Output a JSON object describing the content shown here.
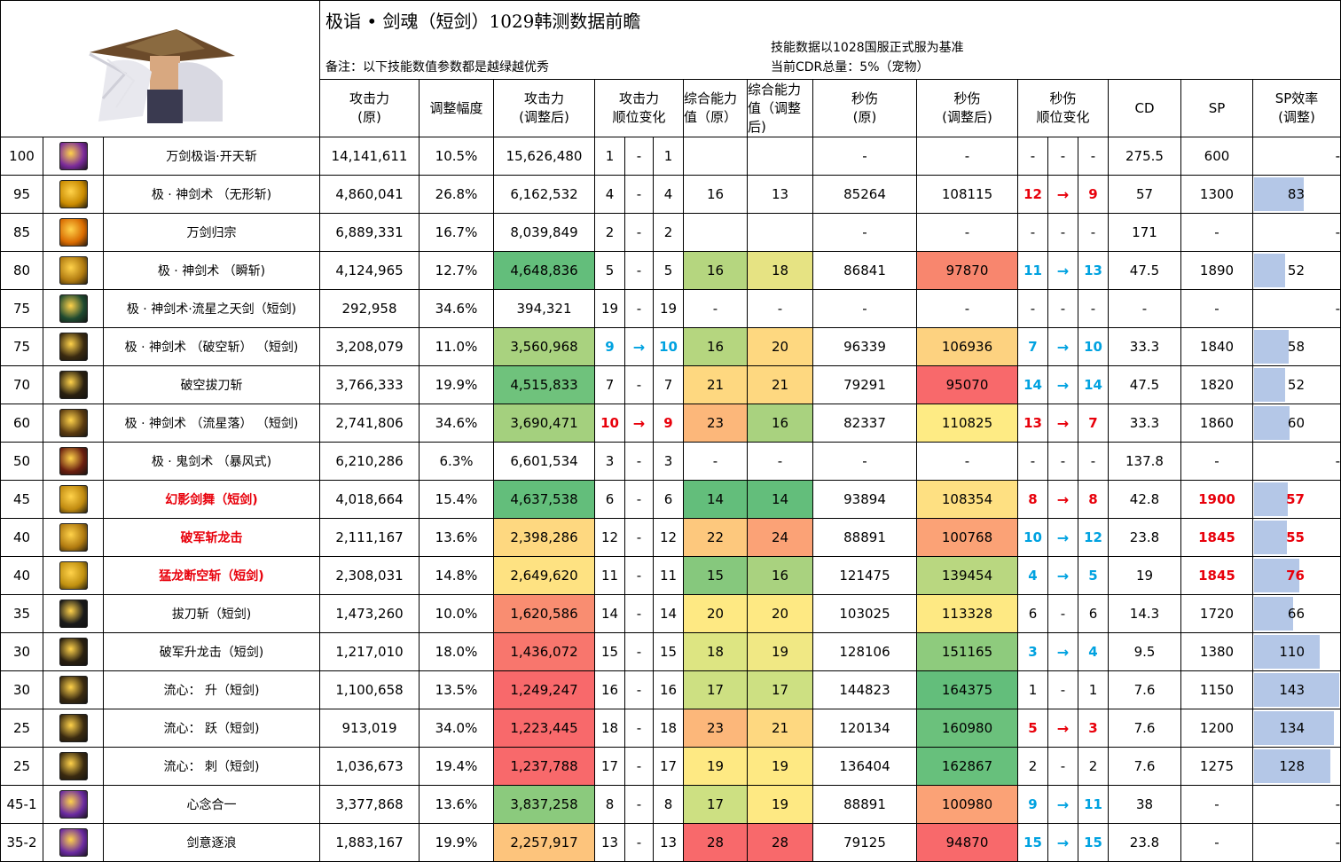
{
  "header": {
    "title": "极诣 • 剑魂（短剑）1029韩测数据前瞻",
    "note": "备注：以下技能数值参数都是越绿越优秀",
    "basis": "技能数据以1028国服正式服为基准",
    "cdr": "当前CDR总量：5%（宠物）"
  },
  "columns": {
    "atk_orig": "攻击力\n(原)",
    "adjust": "调整幅度",
    "atk_new": "攻击力\n(调整后)",
    "atk_rank": "攻击力\n顺位变化",
    "power_orig": "综合能力\n值（原）",
    "power_new": "综合能力\n值（调整\n后)",
    "dps_orig": "秒伤\n(原)",
    "dps_new": "秒伤\n(调整后)",
    "dps_rank": "秒伤\n顺位变化",
    "cd": "CD",
    "sp": "SP",
    "sp_eff": "SP效率\n(调整)"
  },
  "colors": {
    "arrow_red": "#e8000b",
    "arrow_blue": "#00a2e0",
    "spbar": "#b4c7e7"
  },
  "rows": [
    {
      "lv": "100",
      "icon": "spark-icon",
      "iconbg": "#7a2a9a",
      "name": "万剑极诣·开天斩",
      "hl": false,
      "atk": "14,141,611",
      "adj": "10.5%",
      "atk2": "15,626,480",
      "ar1": "1",
      "arr": "-",
      "ar2": "1",
      "ac": "",
      "p1": "",
      "p2": "",
      "d1": "-",
      "d2": "-",
      "dr1": "-",
      "drr": "-",
      "dr2": "-",
      "dc": "",
      "cd": "275.5",
      "sp": "600",
      "spe": "-",
      "spev": null,
      "sphl": false,
      "c_atk2": "#ffffff",
      "c_p1": "#ffffff",
      "c_p2": "#ffffff",
      "c_d2": "#ffffff"
    },
    {
      "lv": "95",
      "icon": "slash-icon",
      "iconbg": "#c98a00",
      "name": "极 · 神剑术 （无形斩)",
      "hl": false,
      "atk": "4,860,041",
      "adj": "26.8%",
      "atk2": "6,162,532",
      "ar1": "4",
      "arr": "-",
      "ar2": "4",
      "ac": "",
      "p1": "16",
      "p2": "13",
      "d1": "85264",
      "d2": "108115",
      "dr1": "12",
      "drr": "→",
      "dr2": "9",
      "dc": "red",
      "cd": "57",
      "sp": "1300",
      "spe": "83",
      "spev": 83,
      "sphl": false,
      "c_atk2": "#ffffff",
      "c_p1": "#ffffff",
      "c_p2": "#ffffff",
      "c_d2": "#ffffff"
    },
    {
      "lv": "85",
      "icon": "burst-icon",
      "iconbg": "#d86a00",
      "name": "万剑归宗",
      "hl": false,
      "atk": "6,889,331",
      "adj": "16.7%",
      "atk2": "8,039,849",
      "ar1": "2",
      "arr": "-",
      "ar2": "2",
      "ac": "",
      "p1": "",
      "p2": "",
      "d1": "-",
      "d2": "-",
      "dr1": "-",
      "drr": "-",
      "dr2": "-",
      "dc": "",
      "cd": "171",
      "sp": "-",
      "spe": "-",
      "spev": null,
      "sphl": false,
      "c_atk2": "#ffffff",
      "c_p1": "#ffffff",
      "c_p2": "#ffffff",
      "c_d2": "#ffffff"
    },
    {
      "lv": "80",
      "icon": "blade-icon",
      "iconbg": "#b07a10",
      "name": "极 · 神剑术 （瞬斩)",
      "hl": false,
      "atk": "4,124,965",
      "adj": "12.7%",
      "atk2": "4,648,836",
      "ar1": "5",
      "arr": "-",
      "ar2": "5",
      "ac": "",
      "p1": "16",
      "p2": "18",
      "d1": "86841",
      "d2": "97870",
      "dr1": "11",
      "drr": "→",
      "dr2": "13",
      "dc": "blue",
      "cd": "47.5",
      "sp": "1890",
      "spe": "52",
      "spev": 52,
      "sphl": false,
      "c_atk2": "#63be7b",
      "c_p1": "#b5d67f",
      "c_p2": "#e6e383",
      "c_d2": "#f8866e"
    },
    {
      "lv": "75",
      "icon": "glyph-icon",
      "iconbg": "#1f4a30",
      "name": "极 · 神剑术·流星之天剑（短剑)",
      "hl": false,
      "atk": "292,958",
      "adj": "34.6%",
      "atk2": "394,321",
      "ar1": "19",
      "arr": "-",
      "ar2": "19",
      "ac": "",
      "p1": "-",
      "p2": "-",
      "d1": "-",
      "d2": "-",
      "dr1": "-",
      "drr": "-",
      "dr2": "-",
      "dc": "",
      "cd": "-",
      "sp": "-",
      "spe": "-",
      "spev": null,
      "sphl": false,
      "c_atk2": "#ffffff",
      "c_p1": "#ffffff",
      "c_p2": "#ffffff",
      "c_d2": "#ffffff"
    },
    {
      "lv": "75",
      "icon": "arc-icon",
      "iconbg": "#3a2a10",
      "name": "极 · 神剑术 （破空斩） （短剑)",
      "hl": false,
      "atk": "3,208,079",
      "adj": "11.0%",
      "atk2": "3,560,968",
      "ar1": "9",
      "arr": "→",
      "ar2": "10",
      "ac": "blue",
      "p1": "16",
      "p2": "20",
      "d1": "96339",
      "d2": "106936",
      "dr1": "7",
      "drr": "→",
      "dr2": "10",
      "dc": "blue",
      "cd": "33.3",
      "sp": "1840",
      "spe": "58",
      "spev": 58,
      "sphl": false,
      "c_atk2": "#a9d27f",
      "c_p1": "#b5d67f",
      "c_p2": "#fed880",
      "c_d2": "#fdd280"
    },
    {
      "lv": "70",
      "icon": "draw-icon",
      "iconbg": "#2a2010",
      "name": "破空拔刀斩",
      "hl": false,
      "atk": "3,766,333",
      "adj": "19.9%",
      "atk2": "4,515,833",
      "ar1": "7",
      "arr": "-",
      "ar2": "7",
      "ac": "",
      "p1": "21",
      "p2": "21",
      "d1": "79291",
      "d2": "95070",
      "dr1": "14",
      "drr": "→",
      "dr2": "14",
      "dc": "blue",
      "cd": "47.5",
      "sp": "1820",
      "spe": "52",
      "spev": 52,
      "sphl": false,
      "c_atk2": "#6fc27c",
      "c_p1": "#fed880",
      "c_p2": "#fed880",
      "c_d2": "#f8696b"
    },
    {
      "lv": "60",
      "icon": "meteor-icon",
      "iconbg": "#5a3a10",
      "name": "极 · 神剑术 （流星落） （短剑)",
      "hl": false,
      "atk": "2,741,806",
      "adj": "34.6%",
      "atk2": "3,690,471",
      "ar1": "10",
      "arr": "→",
      "ar2": "9",
      "ac": "red",
      "p1": "23",
      "p2": "16",
      "d1": "82337",
      "d2": "110825",
      "dr1": "13",
      "drr": "→",
      "dr2": "7",
      "dc": "red",
      "cd": "33.3",
      "sp": "1860",
      "spe": "60",
      "spev": 60,
      "sphl": false,
      "c_atk2": "#a4d07e",
      "c_p1": "#fcb77a",
      "c_p2": "#a9d27f",
      "c_d2": "#feeb84"
    },
    {
      "lv": "50",
      "icon": "storm-icon",
      "iconbg": "#6a1f10",
      "name": "极 · 鬼剑术 （暴风式)",
      "hl": false,
      "atk": "6,210,286",
      "adj": "6.3%",
      "atk2": "6,601,534",
      "ar1": "3",
      "arr": "-",
      "ar2": "3",
      "ac": "",
      "p1": "-",
      "p2": "-",
      "d1": "-",
      "d2": "-",
      "dr1": "-",
      "drr": "-",
      "dr2": "-",
      "dc": "",
      "cd": "137.8",
      "sp": "-",
      "spe": "-",
      "spev": null,
      "sphl": false,
      "c_atk2": "#ffffff",
      "c_p1": "#ffffff",
      "c_p2": "#ffffff",
      "c_d2": "#ffffff"
    },
    {
      "lv": "45",
      "icon": "phantom-icon",
      "iconbg": "#c08a10",
      "name": "幻影剑舞（短剑)",
      "hl": true,
      "atk": "4,018,664",
      "adj": "15.4%",
      "atk2": "4,637,538",
      "ar1": "6",
      "arr": "-",
      "ar2": "6",
      "ac": "",
      "p1": "14",
      "p2": "14",
      "d1": "93894",
      "d2": "108354",
      "dr1": "8",
      "drr": "→",
      "dr2": "8",
      "dc": "red",
      "cd": "42.8",
      "sp": "1900",
      "spe": "57",
      "spev": 57,
      "sphl": true,
      "c_atk2": "#63be7b",
      "c_p1": "#63be7b",
      "c_p2": "#63be7b",
      "c_d2": "#fee082"
    },
    {
      "lv": "40",
      "icon": "dragon-icon",
      "iconbg": "#b07a10",
      "name": "破军斩龙击",
      "hl": true,
      "atk": "2,111,167",
      "adj": "13.6%",
      "atk2": "2,398,286",
      "ar1": "12",
      "arr": "-",
      "ar2": "12",
      "ac": "",
      "p1": "22",
      "p2": "24",
      "d1": "88891",
      "d2": "100768",
      "dr1": "10",
      "drr": "→",
      "dr2": "12",
      "dc": "blue",
      "cd": "23.8",
      "sp": "1845",
      "spe": "55",
      "spev": 55,
      "sphl": true,
      "c_atk2": "#fed880",
      "c_p1": "#fdc87d",
      "c_p2": "#fba276",
      "c_d2": "#fba276"
    },
    {
      "lv": "40",
      "icon": "roar-icon",
      "iconbg": "#c09010",
      "name": "猛龙断空斩（短剑)",
      "hl": true,
      "atk": "2,308,031",
      "adj": "14.8%",
      "atk2": "2,649,620",
      "ar1": "11",
      "arr": "-",
      "ar2": "11",
      "ac": "",
      "p1": "15",
      "p2": "16",
      "d1": "121475",
      "d2": "139454",
      "dr1": "4",
      "drr": "→",
      "dr2": "5",
      "dc": "blue",
      "cd": "19",
      "sp": "1845",
      "spe": "76",
      "spev": 76,
      "sphl": true,
      "c_atk2": "#fee282",
      "c_p1": "#86c87d",
      "c_p2": "#a9d27f",
      "c_d2": "#b9d780"
    },
    {
      "lv": "35",
      "icon": "quickdraw-icon",
      "iconbg": "#1a1a1a",
      "name": "拔刀斩（短剑)",
      "hl": false,
      "atk": "1,473,260",
      "adj": "10.0%",
      "atk2": "1,620,586",
      "ar1": "14",
      "arr": "-",
      "ar2": "14",
      "ac": "",
      "p1": "20",
      "p2": "20",
      "d1": "103025",
      "d2": "113328",
      "dr1": "6",
      "drr": "-",
      "dr2": "6",
      "dc": "",
      "cd": "14.3",
      "sp": "1720",
      "spe": "66",
      "spev": 66,
      "sphl": false,
      "c_atk2": "#f98d71",
      "c_p1": "#fee983",
      "c_p2": "#fee983",
      "c_d2": "#fee983"
    },
    {
      "lv": "30",
      "icon": "rise-icon",
      "iconbg": "#2a2010",
      "name": "破军升龙击（短剑)",
      "hl": false,
      "atk": "1,217,010",
      "adj": "18.0%",
      "atk2": "1,436,072",
      "ar1": "15",
      "arr": "-",
      "ar2": "15",
      "ac": "",
      "p1": "18",
      "p2": "19",
      "d1": "128106",
      "d2": "151165",
      "dr1": "3",
      "drr": "→",
      "dr2": "4",
      "dc": "blue",
      "cd": "9.5",
      "sp": "1380",
      "spe": "110",
      "spev": 110,
      "sphl": false,
      "c_atk2": "#f8766d",
      "c_p1": "#dde582",
      "c_p2": "#f0e884",
      "c_d2": "#8ecb7d"
    },
    {
      "lv": "30",
      "icon": "flow-icon",
      "iconbg": "#3a2a10",
      "name": "流心： 升（短剑)",
      "hl": false,
      "atk": "1,100,658",
      "adj": "13.5%",
      "atk2": "1,249,247",
      "ar1": "16",
      "arr": "-",
      "ar2": "16",
      "ac": "",
      "p1": "17",
      "p2": "17",
      "d1": "144823",
      "d2": "164375",
      "dr1": "1",
      "drr": "-",
      "dr2": "1",
      "dc": "",
      "cd": "7.6",
      "sp": "1150",
      "spe": "143",
      "spev": 143,
      "sphl": false,
      "c_atk2": "#f8696b",
      "c_p1": "#cde082",
      "c_p2": "#cde082",
      "c_d2": "#63be7b"
    },
    {
      "lv": "25",
      "icon": "leap-icon",
      "iconbg": "#3a2a10",
      "name": "流心： 跃（短剑)",
      "hl": false,
      "atk": "913,019",
      "adj": "34.0%",
      "atk2": "1,223,445",
      "ar1": "18",
      "arr": "-",
      "ar2": "18",
      "ac": "",
      "p1": "23",
      "p2": "21",
      "d1": "120134",
      "d2": "160980",
      "dr1": "5",
      "drr": "→",
      "dr2": "3",
      "dc": "red",
      "cd": "7.6",
      "sp": "1200",
      "spe": "134",
      "spev": 134,
      "sphl": false,
      "c_atk2": "#f8696b",
      "c_p1": "#fcb77a",
      "c_p2": "#fed880",
      "c_d2": "#6bc17c"
    },
    {
      "lv": "25",
      "icon": "thrust-icon",
      "iconbg": "#3a2a10",
      "name": "流心： 刺（短剑)",
      "hl": false,
      "atk": "1,036,673",
      "adj": "19.4%",
      "atk2": "1,237,788",
      "ar1": "17",
      "arr": "-",
      "ar2": "17",
      "ac": "",
      "p1": "19",
      "p2": "19",
      "d1": "136404",
      "d2": "162867",
      "dr1": "2",
      "drr": "-",
      "dr2": "2",
      "dc": "",
      "cd": "7.6",
      "sp": "1275",
      "spe": "128",
      "spev": 128,
      "sphl": false,
      "c_atk2": "#f8696b",
      "c_p1": "#fee983",
      "c_p2": "#fee983",
      "c_d2": "#67c07c"
    },
    {
      "lv": "45-1",
      "icon": "mind-icon",
      "iconbg": "#6a2aa0",
      "name": "心念合一",
      "hl": false,
      "atk": "3,377,868",
      "adj": "13.6%",
      "atk2": "3,837,258",
      "ar1": "8",
      "arr": "-",
      "ar2": "8",
      "ac": "",
      "p1": "17",
      "p2": "19",
      "d1": "88891",
      "d2": "100980",
      "dr1": "9",
      "drr": "→",
      "dr2": "11",
      "dc": "blue",
      "cd": "38",
      "sp": "-",
      "spe": "-",
      "spev": null,
      "sphl": true,
      "c_atk2": "#8bca7d",
      "c_p1": "#cde082",
      "c_p2": "#fee983",
      "c_d2": "#fba276"
    },
    {
      "lv": "35-2",
      "icon": "wave-icon",
      "iconbg": "#6a2aa0",
      "name": "剑意逐浪",
      "hl": false,
      "atk": "1,883,167",
      "adj": "19.9%",
      "atk2": "2,257,917",
      "ar1": "13",
      "arr": "-",
      "ar2": "13",
      "ac": "",
      "p1": "28",
      "p2": "28",
      "d1": "79125",
      "d2": "94870",
      "dr1": "15",
      "drr": "→",
      "dr2": "15",
      "dc": "blue",
      "cd": "23.8",
      "sp": "-",
      "spe": "-",
      "spev": null,
      "sphl": false,
      "c_atk2": "#fdc47c",
      "c_p1": "#f8696b",
      "c_p2": "#f8696b",
      "c_d2": "#f8696b"
    }
  ]
}
